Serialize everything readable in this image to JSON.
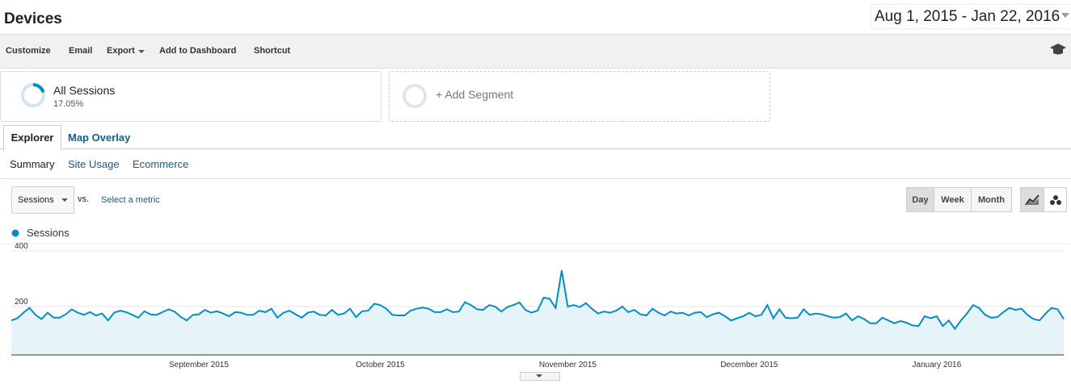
{
  "header": {
    "title": "Devices",
    "date_range": "Aug 1, 2015 - Jan 22, 2016"
  },
  "toolbar": [
    "Customize",
    "Email",
    "Export",
    "Add to Dashboard",
    "Shortcut"
  ],
  "segments": {
    "active": {
      "name": "All Sessions",
      "share": "17.05%"
    },
    "add": "+ Add Segment"
  },
  "tabs": [
    "Explorer",
    "Map Overlay"
  ],
  "subtabs": [
    "Summary",
    "Site Usage",
    "Ecommerce"
  ],
  "metric_selector": {
    "selected": "Sessions",
    "vs": "vs.",
    "second": "Select a metric"
  },
  "granularity": [
    "Day",
    "Week",
    "Month"
  ],
  "chart_data": {
    "type": "line",
    "categories": [
      null,
      null,
      null,
      null,
      null,
      null,
      null,
      null,
      null,
      null,
      null,
      null,
      null,
      null,
      null,
      null,
      null,
      null,
      null,
      null,
      null,
      null,
      null,
      null,
      null,
      null,
      null,
      null,
      null,
      null,
      null,
      "September 2015",
      null,
      null,
      null,
      null,
      null,
      null,
      null,
      null,
      null,
      null,
      null,
      null,
      null,
      null,
      null,
      null,
      null,
      null,
      null,
      null,
      null,
      null,
      null,
      null,
      null,
      null,
      null,
      null,
      null,
      "October 2015",
      null,
      null,
      null,
      null,
      null,
      null,
      null,
      null,
      null,
      null,
      null,
      null,
      null,
      null,
      null,
      null,
      null,
      null,
      null,
      null,
      null,
      null,
      null,
      null,
      null,
      null,
      null,
      null,
      null,
      null,
      "November 2015",
      null,
      null,
      null,
      null,
      null,
      null,
      null,
      null,
      null,
      null,
      null,
      null,
      null,
      null,
      null,
      null,
      null,
      null,
      null,
      null,
      null,
      null,
      null,
      null,
      null,
      null,
      null,
      null,
      null,
      "December 2015",
      null,
      null,
      null,
      null,
      null,
      null,
      null,
      null,
      null,
      null,
      null,
      null,
      null,
      null,
      null,
      null,
      null,
      null,
      null,
      null,
      null,
      null,
      null,
      null,
      null,
      null,
      null,
      null,
      null,
      null,
      "January 2016",
      null,
      null,
      null,
      null,
      null,
      null,
      null,
      null,
      null,
      null,
      null,
      null,
      null,
      null,
      null,
      null,
      null,
      null,
      null,
      null,
      null
    ],
    "series": [
      {
        "name": "Sessions",
        "color": "#058dc7",
        "values": [
          150,
          158,
          178,
          195,
          170,
          155,
          178,
          160,
          160,
          172,
          190,
          178,
          170,
          180,
          168,
          175,
          150,
          178,
          185,
          180,
          170,
          160,
          183,
          172,
          170,
          180,
          190,
          182,
          163,
          150,
          170,
          172,
          188,
          178,
          183,
          175,
          165,
          180,
          178,
          170,
          170,
          185,
          180,
          192,
          160,
          178,
          185,
          172,
          160,
          178,
          182,
          170,
          168,
          188,
          170,
          175,
          192,
          162,
          183,
          185,
          210,
          205,
          192,
          170,
          168,
          168,
          185,
          192,
          196,
          192,
          180,
          180,
          190,
          180,
          182,
          216,
          205,
          190,
          188,
          205,
          200,
          182,
          198,
          205,
          215,
          188,
          178,
          185,
          232,
          228,
          195,
          330,
          200,
          205,
          198,
          212,
          192,
          175,
          182,
          178,
          185,
          200,
          180,
          188,
          172,
          168,
          192,
          178,
          168,
          182,
          175,
          178,
          168,
          178,
          180,
          162,
          172,
          178,
          165,
          150,
          158,
          165,
          178,
          165,
          170,
          205,
          158,
          190,
          160,
          158,
          160,
          190,
          170,
          175,
          172,
          165,
          160,
          162,
          175,
          150,
          165,
          155,
          140,
          140,
          160,
          150,
          140,
          148,
          142,
          132,
          130,
          165,
          158,
          165,
          130,
          150,
          120,
          150,
          175,
          205,
          195,
          170,
          160,
          162,
          180,
          195,
          188,
          192,
          170,
          155,
          150,
          175,
          195,
          190,
          155
        ]
      }
    ],
    "ylim": [
      26,
      426
    ],
    "yticks": [
      200,
      400
    ],
    "grid": true,
    "fill_area": true
  }
}
